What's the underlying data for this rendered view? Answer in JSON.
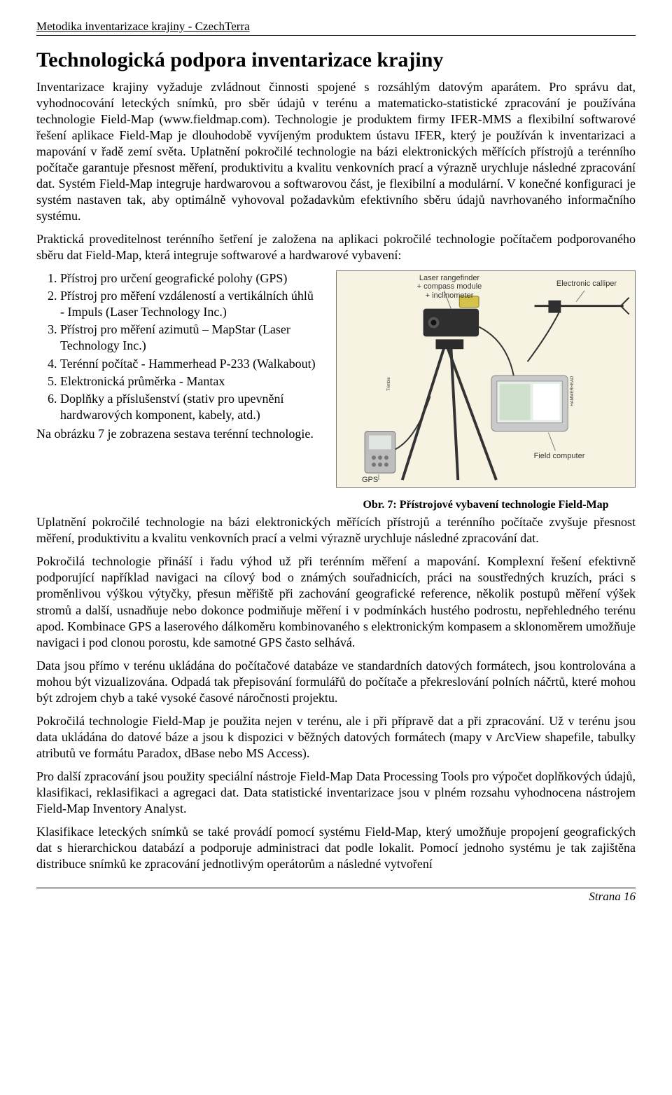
{
  "header": {
    "running_title": "Metodika inventarizace krajiny - CzechTerra"
  },
  "title": "Technologická podpora inventarizace krajiny",
  "paragraphs": {
    "p1": "Inventarizace krajiny vyžaduje zvládnout činnosti spojené s rozsáhlým datovým aparátem. Pro správu dat, vyhodnocování leteckých snímků, pro sběr údajů v terénu a matematicko-statistické zpracování je používána technologie Field-Map (www.fieldmap.com). Technologie je produktem firmy IFER-MMS a flexibilní softwarové řešení aplikace Field-Map je dlouhodobě vyvíjeným produktem ústavu IFER, který je používán k inventarizaci a mapování v řadě zemí světa. Uplatnění pokročilé technologie na bázi elektronických měřících přístrojů a terénního počítače garantuje přesnost měření, produktivitu a kvalitu venkovních prací a výrazně urychluje následné zpracování dat. Systém Field-Map integruje hardwarovou a softwarovou část, je flexibilní a modulární. V konečné konfiguraci je systém nastaven tak, aby optimálně vyhovoval požadavkům efektivního sběru údajů navrhovaného informačního systému.",
    "p2": "Praktická proveditelnost terénního šetření je založena na aplikaci pokročilé technologie počítačem podporovaného sběru dat Field-Map, která integruje softwarové a hardwarové vybavení:",
    "p_afterlist": "Na obrázku 7 je zobrazena sestava terénní technologie.",
    "p3": "Uplatnění pokročilé technologie na bázi elektronických měřících přístrojů a terénního počítače zvyšuje přesnost měření, produktivitu a kvalitu venkovních prací a velmi výrazně urychluje následné zpracování dat.",
    "p4": "Pokročilá technologie přináší i řadu výhod už při terénním měření a mapování. Komplexní řešení efektivně podporující například navigaci na cílový bod o známých souřadnicích, práci na soustředných kruzích, práci s proměnlivou výškou výtyčky, přesun měřiště při zachování geografické reference, několik postupů měření výšek stromů a další, usnadňuje nebo dokonce podmiňuje měření i v podmínkách hustého podrostu, nepřehledného terénu apod. Kombinace GPS a laserového dálkoměru kombinovaného s elektronickým kompasem a sklonoměrem umožňuje navigaci i pod clonou porostu, kde samotné GPS často selhává.",
    "p5": "Data jsou přímo v terénu ukládána do počítačové databáze ve standardních datových formátech, jsou kontrolována a mohou být vizualizována. Odpadá tak přepisování formulářů do počítače a překreslování polních náčrtů, které mohou být zdrojem chyb a také vysoké časové náročnosti projektu.",
    "p6": "Pokročilá technologie Field-Map je použita nejen v terénu, ale i při přípravě dat a při zpracování. Už v terénu jsou data ukládána do datové báze a jsou k dispozici v běžných datových formátech (mapy v ArcView shapefile, tabulky atributů ve formátu Paradox, dBase nebo MS Access).",
    "p7": "Pro další zpracování jsou použity speciální nástroje Field-Map Data Processing Tools pro výpočet doplňkových údajů, klasifikaci, reklasifikaci a agregaci dat. Data statistické inventarizace jsou v plném rozsahu vyhodnocena nástrojem Field-Map Inventory Analyst.",
    "p8": "Klasifikace leteckých snímků se také provádí pomocí systému Field-Map, který umožňuje propojení geografických dat s hierarchickou databází a podporuje administraci dat podle lokalit. Pomocí jednoho systému je tak zajištěna distribuce snímků ke zpracování jednotlivým operátorům a následné vytvoření"
  },
  "list": {
    "items": [
      "Přístroj pro určení geografické polohy (GPS)",
      "Přístroj pro měření vzdáleností a vertikálních úhlů - Impuls (Laser Technology Inc.)",
      "Přístroj pro měření azimutů – MapStar (Laser Technology Inc.)",
      "Terénní počítač - Hammerhead P-233 (Walkabout)",
      "Elektronická průměrka - Mantax",
      "Doplňky a příslušenství (stativ pro upevnění hardwarových komponent, kabely, atd.)"
    ]
  },
  "figure": {
    "caption": "Obr. 7: Přístrojové vybavení technologie Field-Map",
    "labels": {
      "laser": "Laser rangefinder\n+ compass module\n+ inclinometer",
      "calliper": "Electronic calliper",
      "gps": "GPS",
      "computer": "Field computer"
    },
    "colors": {
      "bg": "#f7f3e2",
      "device_dark": "#3a3a3a",
      "device_light": "#cfcfcf",
      "yellow": "#d4c24a",
      "screen": "#dfe6e0",
      "line": "#777777"
    }
  },
  "footer": {
    "page_label": "Strana 16"
  }
}
